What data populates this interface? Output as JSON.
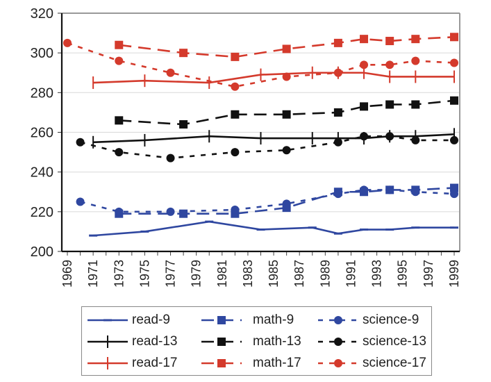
{
  "chart_data": {
    "type": "line",
    "title": "",
    "xlabel": "",
    "ylabel": "",
    "xlim": [
      1969,
      1999
    ],
    "ylim": [
      200,
      320
    ],
    "yticks": [
      200,
      220,
      240,
      260,
      280,
      300,
      320
    ],
    "xtick_labels": [
      "1969",
      "1971",
      "1973",
      "1975",
      "1977",
      "1979",
      "1981",
      "1983",
      "1985",
      "1987",
      "1989",
      "1991",
      "1993",
      "1995",
      "1997",
      "1999"
    ],
    "grid": "horizontal",
    "legend_position": "bottom",
    "series": [
      {
        "name": "read-9",
        "color": "#2f47a0",
        "dash": "solid",
        "marker": "dash",
        "x": [
          1971,
          1975,
          1980,
          1984,
          1988,
          1990,
          1992,
          1994,
          1996,
          1999
        ],
        "values": [
          208,
          210,
          215,
          211,
          212,
          209,
          211,
          211,
          212,
          212
        ]
      },
      {
        "name": "read-13",
        "color": "#111111",
        "dash": "solid",
        "marker": "plus",
        "x": [
          1971,
          1975,
          1980,
          1984,
          1988,
          1990,
          1992,
          1994,
          1996,
          1999
        ],
        "values": [
          255,
          256,
          258,
          257,
          257,
          257,
          257,
          258,
          258,
          259
        ]
      },
      {
        "name": "read-17",
        "color": "#d43a2c",
        "dash": "solid",
        "marker": "plus",
        "x": [
          1971,
          1975,
          1980,
          1984,
          1988,
          1990,
          1992,
          1994,
          1996,
          1999
        ],
        "values": [
          285,
          286,
          285,
          289,
          290,
          290,
          290,
          288,
          288,
          288
        ]
      },
      {
        "name": "math-9",
        "color": "#2f47a0",
        "dash": "long",
        "marker": "square",
        "x": [
          1973,
          1978,
          1982,
          1986,
          1990,
          1992,
          1994,
          1996,
          1999
        ],
        "values": [
          219,
          219,
          219,
          222,
          230,
          230,
          231,
          231,
          232
        ]
      },
      {
        "name": "math-13",
        "color": "#111111",
        "dash": "long",
        "marker": "square",
        "x": [
          1973,
          1978,
          1982,
          1986,
          1990,
          1992,
          1994,
          1996,
          1999
        ],
        "values": [
          266,
          264,
          269,
          269,
          270,
          273,
          274,
          274,
          276
        ]
      },
      {
        "name": "math-17",
        "color": "#d43a2c",
        "dash": "long",
        "marker": "square",
        "x": [
          1973,
          1978,
          1982,
          1986,
          1990,
          1992,
          1994,
          1996,
          1999
        ],
        "values": [
          304,
          300,
          298,
          302,
          305,
          307,
          306,
          307,
          308
        ]
      },
      {
        "name": "science-9",
        "color": "#2f47a0",
        "dash": "short",
        "marker": "circle",
        "x": [
          1970,
          1973,
          1977,
          1982,
          1986,
          1990,
          1992,
          1994,
          1996,
          1999
        ],
        "values": [
          225,
          220,
          220,
          221,
          224,
          229,
          231,
          231,
          230,
          229
        ]
      },
      {
        "name": "science-13",
        "color": "#111111",
        "dash": "short",
        "marker": "circle",
        "x": [
          1970,
          1973,
          1977,
          1982,
          1986,
          1990,
          1992,
          1994,
          1996,
          1999
        ],
        "values": [
          255,
          250,
          247,
          250,
          251,
          255,
          258,
          258,
          256,
          256
        ]
      },
      {
        "name": "science-17",
        "color": "#d43a2c",
        "dash": "short",
        "marker": "circle",
        "x": [
          1969,
          1973,
          1977,
          1982,
          1986,
          1990,
          1992,
          1994,
          1996,
          1999
        ],
        "values": [
          305,
          296,
          290,
          283,
          288,
          290,
          294,
          294,
          296,
          295
        ]
      }
    ]
  },
  "legend": {
    "items": [
      "read-9",
      "math-9",
      "science-9",
      "read-13",
      "math-13",
      "science-13",
      "read-17",
      "math-17",
      "science-17"
    ]
  }
}
